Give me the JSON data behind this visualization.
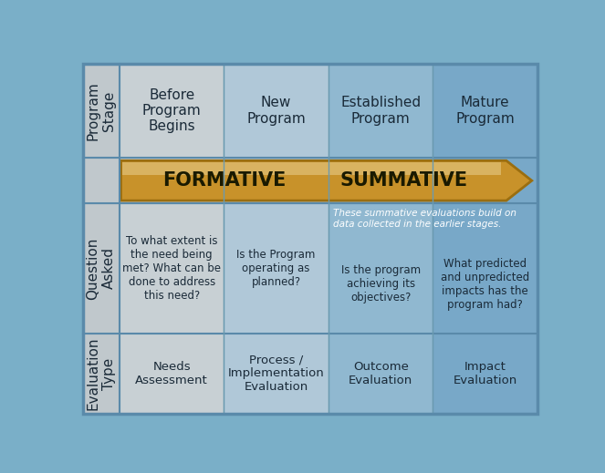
{
  "bg_outer": "#7aafc8",
  "label_col_bg": "#c0c8cc",
  "col1_bg": "#c8d0d4",
  "col2_bg": "#b0c8d8",
  "col3_bg": "#90b8d0",
  "col4_bg": "#78a8c8",
  "border_outer": "#5a8aaa",
  "border_inner": "#6a9ab0",
  "arrow_fill": "#c8922a",
  "arrow_edge": "#9a6e10",
  "arrow_light": "#e8d090",
  "col_headers": [
    "Before\nProgram\nBegins",
    "New\nProgram",
    "Established\nProgram",
    "Mature\nProgram"
  ],
  "row_label_program": "Program\nStage",
  "row_label_question": "Question\nAsked",
  "row_label_eval": "Evaluation\nType",
  "formative_label": "FORMATIVE",
  "summative_label": "SUMMATIVE",
  "summative_note": "These summative evaluations build on\ndata collected in the earlier stages.",
  "questions": [
    "To what extent is\nthe need being\nmet? What can be\ndone to address\nthis need?",
    "Is the Program\noperating as\nplanned?",
    "Is the program\nachieving its\nobjectives?",
    "What predicted\nand unpredicted\nimpacts has the\nprogram had?"
  ],
  "eval_types": [
    "Needs\nAssessment",
    "Process /\nImplementation\nEvaluation",
    "Outcome\nEvaluation",
    "Impact\nEvaluation"
  ],
  "text_color": "#1a2a38",
  "white_text": "#ffffff",
  "arrow_text_color": "#1a1a00"
}
